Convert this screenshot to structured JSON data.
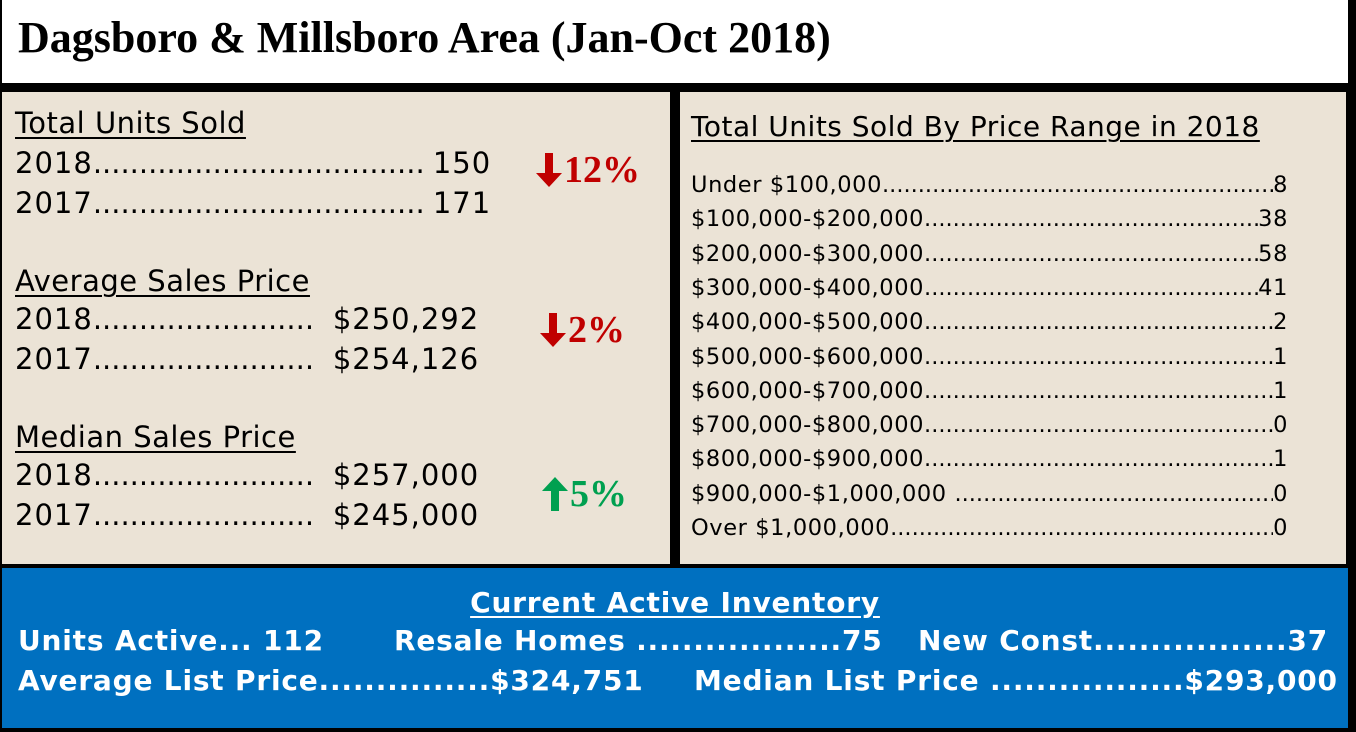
{
  "title": "Dagsboro & Millsboro Area (Jan-Oct 2018)",
  "left": {
    "sections": [
      {
        "heading": "Total Units Sold",
        "rows": [
          {
            "label": "2018",
            "dots": "....................................",
            "value": "150"
          },
          {
            "label": "2017",
            "dots": "....................................",
            "value": "171"
          }
        ],
        "change": {
          "text": "12%",
          "direction": "down",
          "color": "#c00000"
        }
      },
      {
        "heading": "Average Sales Price",
        "rows": [
          {
            "label": "2018",
            "dots": "........................",
            "value": "$250,292"
          },
          {
            "label": "2017",
            "dots": "........................",
            "value": "$254,126"
          }
        ],
        "change": {
          "text": "2%",
          "direction": "down",
          "color": "#c00000"
        }
      },
      {
        "heading": "Median Sales Price",
        "rows": [
          {
            "label": "2018",
            "dots": "........................",
            "value": "$257,000"
          },
          {
            "label": "2017",
            "dots": "........................",
            "value": "$245,000"
          }
        ],
        "change": {
          "text": "5%",
          "direction": "up",
          "color": "#00a050"
        }
      }
    ]
  },
  "right": {
    "heading": "Total Units Sold By Price Range in 2018",
    "rows": [
      {
        "label": "Under $100,000",
        "value": "8"
      },
      {
        "label": "$100,000-$200,000",
        "value": "38"
      },
      {
        "label": "$200,000-$300,000",
        "value": "58"
      },
      {
        "label": "$300,000-$400,000",
        "value": "41"
      },
      {
        "label": "$400,000-$500,000",
        "value": "2"
      },
      {
        "label": "$500,000-$600,000",
        "value": "1"
      },
      {
        "label": "$600,000-$700,000",
        "value": "1"
      },
      {
        "label": "$700,000-$800,000",
        "value": "0"
      },
      {
        "label": "$800,000-$900,000",
        "value": "1"
      },
      {
        "label": "$900,000-$1,000,000 ",
        "value": "0"
      },
      {
        "label": "Over $1,000,000",
        "value": "0"
      }
    ]
  },
  "inventory": {
    "heading": "Current Active Inventory",
    "units_active": "Units Active... 112",
    "resale": "Resale Homes ..................75",
    "new_const": "New Const.................37",
    "avg_list": "Average List Price...............$324,751",
    "median_list": "Median List Price .................$293,000"
  },
  "colors": {
    "panel_bg": "#ebe3d6",
    "inventory_bg": "#0070c0",
    "down": "#c00000",
    "up": "#00a050"
  }
}
